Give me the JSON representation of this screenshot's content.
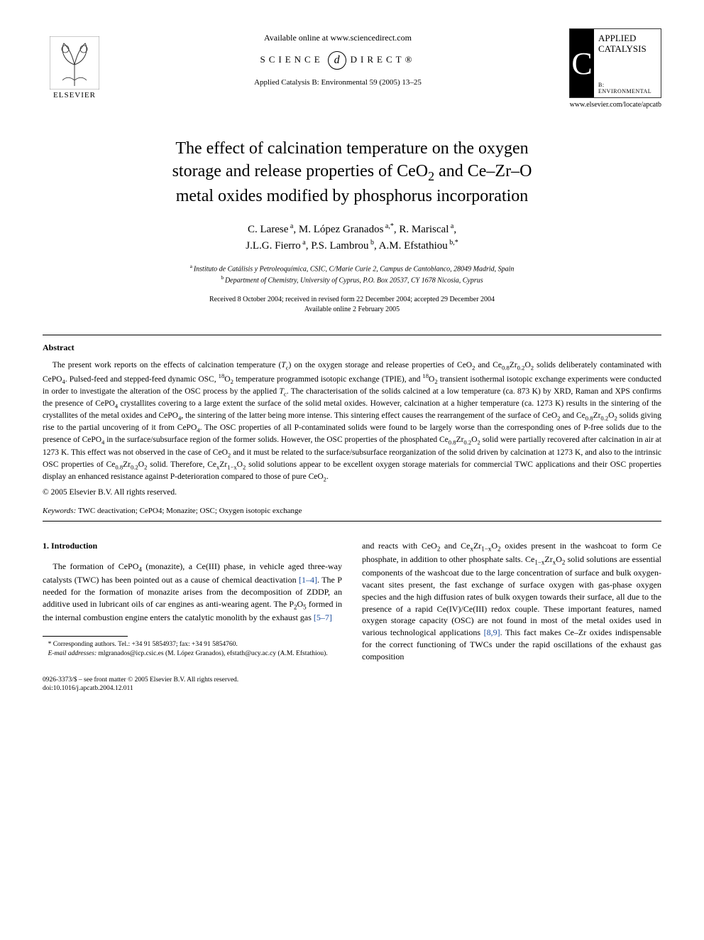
{
  "header": {
    "publisher_name": "ELSEVIER",
    "available_online": "Available online at www.sciencedirect.com",
    "sd_left": "SCIENCE",
    "sd_right": "DIRECT®",
    "journal_ref": "Applied Catalysis B: Environmental 59 (2005) 13–25",
    "journal_logo_letter": "C",
    "journal_logo_title_l1": "APPLIED",
    "journal_logo_title_l2": "CATALYSIS",
    "journal_logo_sub": "B: ENVIRONMENTAL",
    "journal_url": "www.elsevier.com/locate/apcatb"
  },
  "title_l1": "The effect of calcination temperature on the oxygen",
  "title_l2": "storage and release properties of CeO",
  "title_l2_sub": "2",
  "title_l2_tail": " and Ce–Zr–O",
  "title_l3": "metal oxides modified by phosphorus incorporation",
  "authors_l1_parts": [
    {
      "text": "C. Larese",
      "sup": "a"
    },
    {
      "text": ", M. López Granados",
      "sup": "a,*"
    },
    {
      "text": ", R. Mariscal",
      "sup": "a"
    },
    {
      "text": ",",
      "sup": ""
    }
  ],
  "authors_l2_parts": [
    {
      "text": "J.L.G. Fierro",
      "sup": "a"
    },
    {
      "text": ", P.S. Lambrou",
      "sup": "b"
    },
    {
      "text": ", A.M. Efstathiou",
      "sup": "b,*"
    }
  ],
  "affiliations": [
    {
      "sup": "a",
      "text": "Instituto de Catálisis y Petroleoquímica, CSIC, C/Marie Curie 2, Campus de Cantoblanco, 28049 Madrid, Spain"
    },
    {
      "sup": "b",
      "text": "Department of Chemistry, University of Cyprus, P.O. Box 20537, CY 1678 Nicosia, Cyprus"
    }
  ],
  "dates_l1": "Received 8 October 2004; received in revised form 22 December 2004; accepted 29 December 2004",
  "dates_l2": "Available online 2 February 2005",
  "abstract_heading": "Abstract",
  "abstract_html": "The present work reports on the effects of calcination temperature (<i>T</i><sub>c</sub>) on the oxygen storage and release properties of CeO<sub>2</sub> and Ce<sub>0.8</sub>Zr<sub>0.2</sub>O<sub>2</sub> solids deliberately contaminated with CePO<sub>4</sub>. Pulsed-feed and stepped-feed dynamic OSC, <sup>18</sup>O<sub>2</sub> temperature programmed isotopic exchange (TPIE), and <sup>18</sup>O<sub>2</sub> transient isothermal isotopic exchange experiments were conducted in order to investigate the alteration of the OSC process by the applied <i>T</i><sub>c</sub>. The characterisation of the solids calcined at a low temperature (ca. 873 K) by XRD, Raman and XPS confirms the presence of CePO<sub>4</sub> crystallites covering to a large extent the surface of the solid metal oxides. However, calcination at a higher temperature (ca. 1273 K) results in the sintering of the crystallites of the metal oxides and CePO<sub>4</sub>, the sintering of the latter being more intense. This sintering effect causes the rearrangement of the surface of CeO<sub>2</sub> and Ce<sub>0.8</sub>Zr<sub>0.2</sub>O<sub>2</sub> solids giving rise to the partial uncovering of it from CePO<sub>4</sub>. The OSC properties of all P-contaminated solids were found to be largely worse than the corresponding ones of P-free solids due to the presence of CePO<sub>4</sub> in the surface/subsurface region of the former solids. However, the OSC properties of the phosphated Ce<sub>0.8</sub>Zr<sub>0.2</sub>O<sub>2</sub> solid were partially recovered after calcination in air at 1273 K. This effect was not observed in the case of CeO<sub>2</sub> and it must be related to the surface/subsurface reorganization of the solid driven by calcination at 1273 K, and also to the intrinsic OSC properties of Ce<sub>0.8</sub>Zr<sub>0.2</sub>O<sub>2</sub> solid. Therefore, Ce<sub>x</sub>Zr<sub>1−x</sub>O<sub>2</sub> solid solutions appear to be excellent oxygen storage materials for commercial TWC applications and their OSC properties display an enhanced resistance against P-deterioration compared to those of pure CeO<sub>2</sub>.",
  "copyright": "© 2005 Elsevier B.V. All rights reserved.",
  "keywords_label": "Keywords:",
  "keywords_text": " TWC deactivation; CePO4; Monazite; OSC; Oxygen isotopic exchange",
  "section1_heading": "1.  Introduction",
  "col1_html": "The formation of CePO<sub>4</sub> (monazite), a Ce(III) phase, in vehicle aged three-way catalysts (TWC) has been pointed out as a cause of chemical deactivation <span class=\"ref-link\">[1–4]</span>. The P needed for the formation of monazite arises from the decomposition of ZDDP, an additive used in lubricant oils of car engines as anti-wearing agent. The P<sub>2</sub>O<sub>5</sub> formed in the internal combustion engine enters the catalytic monolith by the exhaust gas <span class=\"ref-link\">[5–7]</span>",
  "col2_html": "and reacts with CeO<sub>2</sub> and Ce<sub>x</sub>Zr<sub>1−x</sub>O<sub>2</sub> oxides present in the washcoat to form Ce phosphate, in addition to other phosphate salts. Ce<sub>1−x</sub>Zr<sub>x</sub>O<sub>2</sub> solid solutions are essential components of the washcoat due to the large concentration of surface and bulk oxygen-vacant sites present, the fast exchange of surface oxygen with gas-phase oxygen species and the high diffusion rates of bulk oxygen towards their surface, all due to the presence of a rapid Ce(IV)/Ce(III) redox couple. These important features, named oxygen storage capacity (OSC) are not found in most of the metal oxides used in various technological applications <span class=\"ref-link\">[8,9]</span>. This fact makes Ce–Zr oxides indispensable for the correct functioning of TWCs under the rapid oscillations of the exhaust gas composition",
  "footnotes": {
    "corr": "* Corresponding authors. Tel.: +34 91 5854937; fax: +34 91 5854760.",
    "email_label": "E-mail addresses:",
    "email_text": " mlgranados@icp.csic.es (M. López Granados), efstath@ucy.ac.cy (A.M. Efstathiou)."
  },
  "bottom": {
    "issn_line": "0926-3373/$ – see front matter © 2005 Elsevier B.V. All rights reserved.",
    "doi_line": "doi:10.1016/j.apcatb.2004.12.011"
  },
  "colors": {
    "ref_link": "#1a4b9b",
    "text": "#000000",
    "bg": "#ffffff"
  }
}
